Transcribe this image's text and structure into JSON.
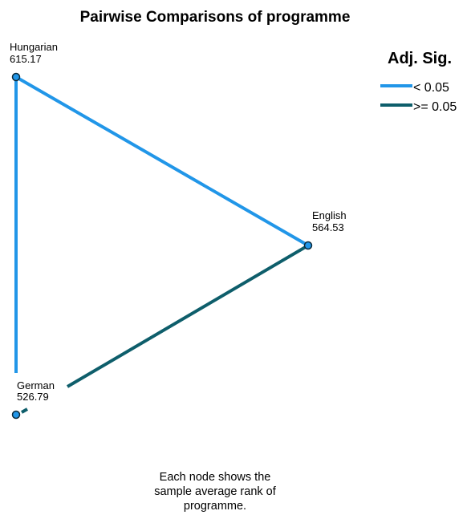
{
  "title": "Pairwise Comparisons of programme",
  "legend": {
    "title": "Adj. Sig.",
    "items": [
      {
        "label": "< 0.05",
        "color": "#2196E8"
      },
      {
        "label": ">= 0.05",
        "color": "#0E5E6B"
      }
    ]
  },
  "nodes": [
    {
      "name": "Hungarian",
      "rank": "615.17"
    },
    {
      "name": "English",
      "rank": "564.53"
    },
    {
      "name": "German",
      "rank": "526.79"
    }
  ],
  "edges": [
    {
      "from": "Hungarian",
      "to": "English",
      "significance": "< 0.05"
    },
    {
      "from": "Hungarian",
      "to": "German",
      "significance": "< 0.05"
    },
    {
      "from": "English",
      "to": "German",
      "significance": ">= 0.05"
    }
  ],
  "footnote": {
    "lines": [
      "Each node shows the",
      "sample average rank of",
      "programme."
    ]
  },
  "colors": {
    "significant": "#2196E8",
    "not_significant": "#0E5E6B",
    "node_fill": "#2196E8",
    "node_stroke": "#0B2A3B"
  }
}
